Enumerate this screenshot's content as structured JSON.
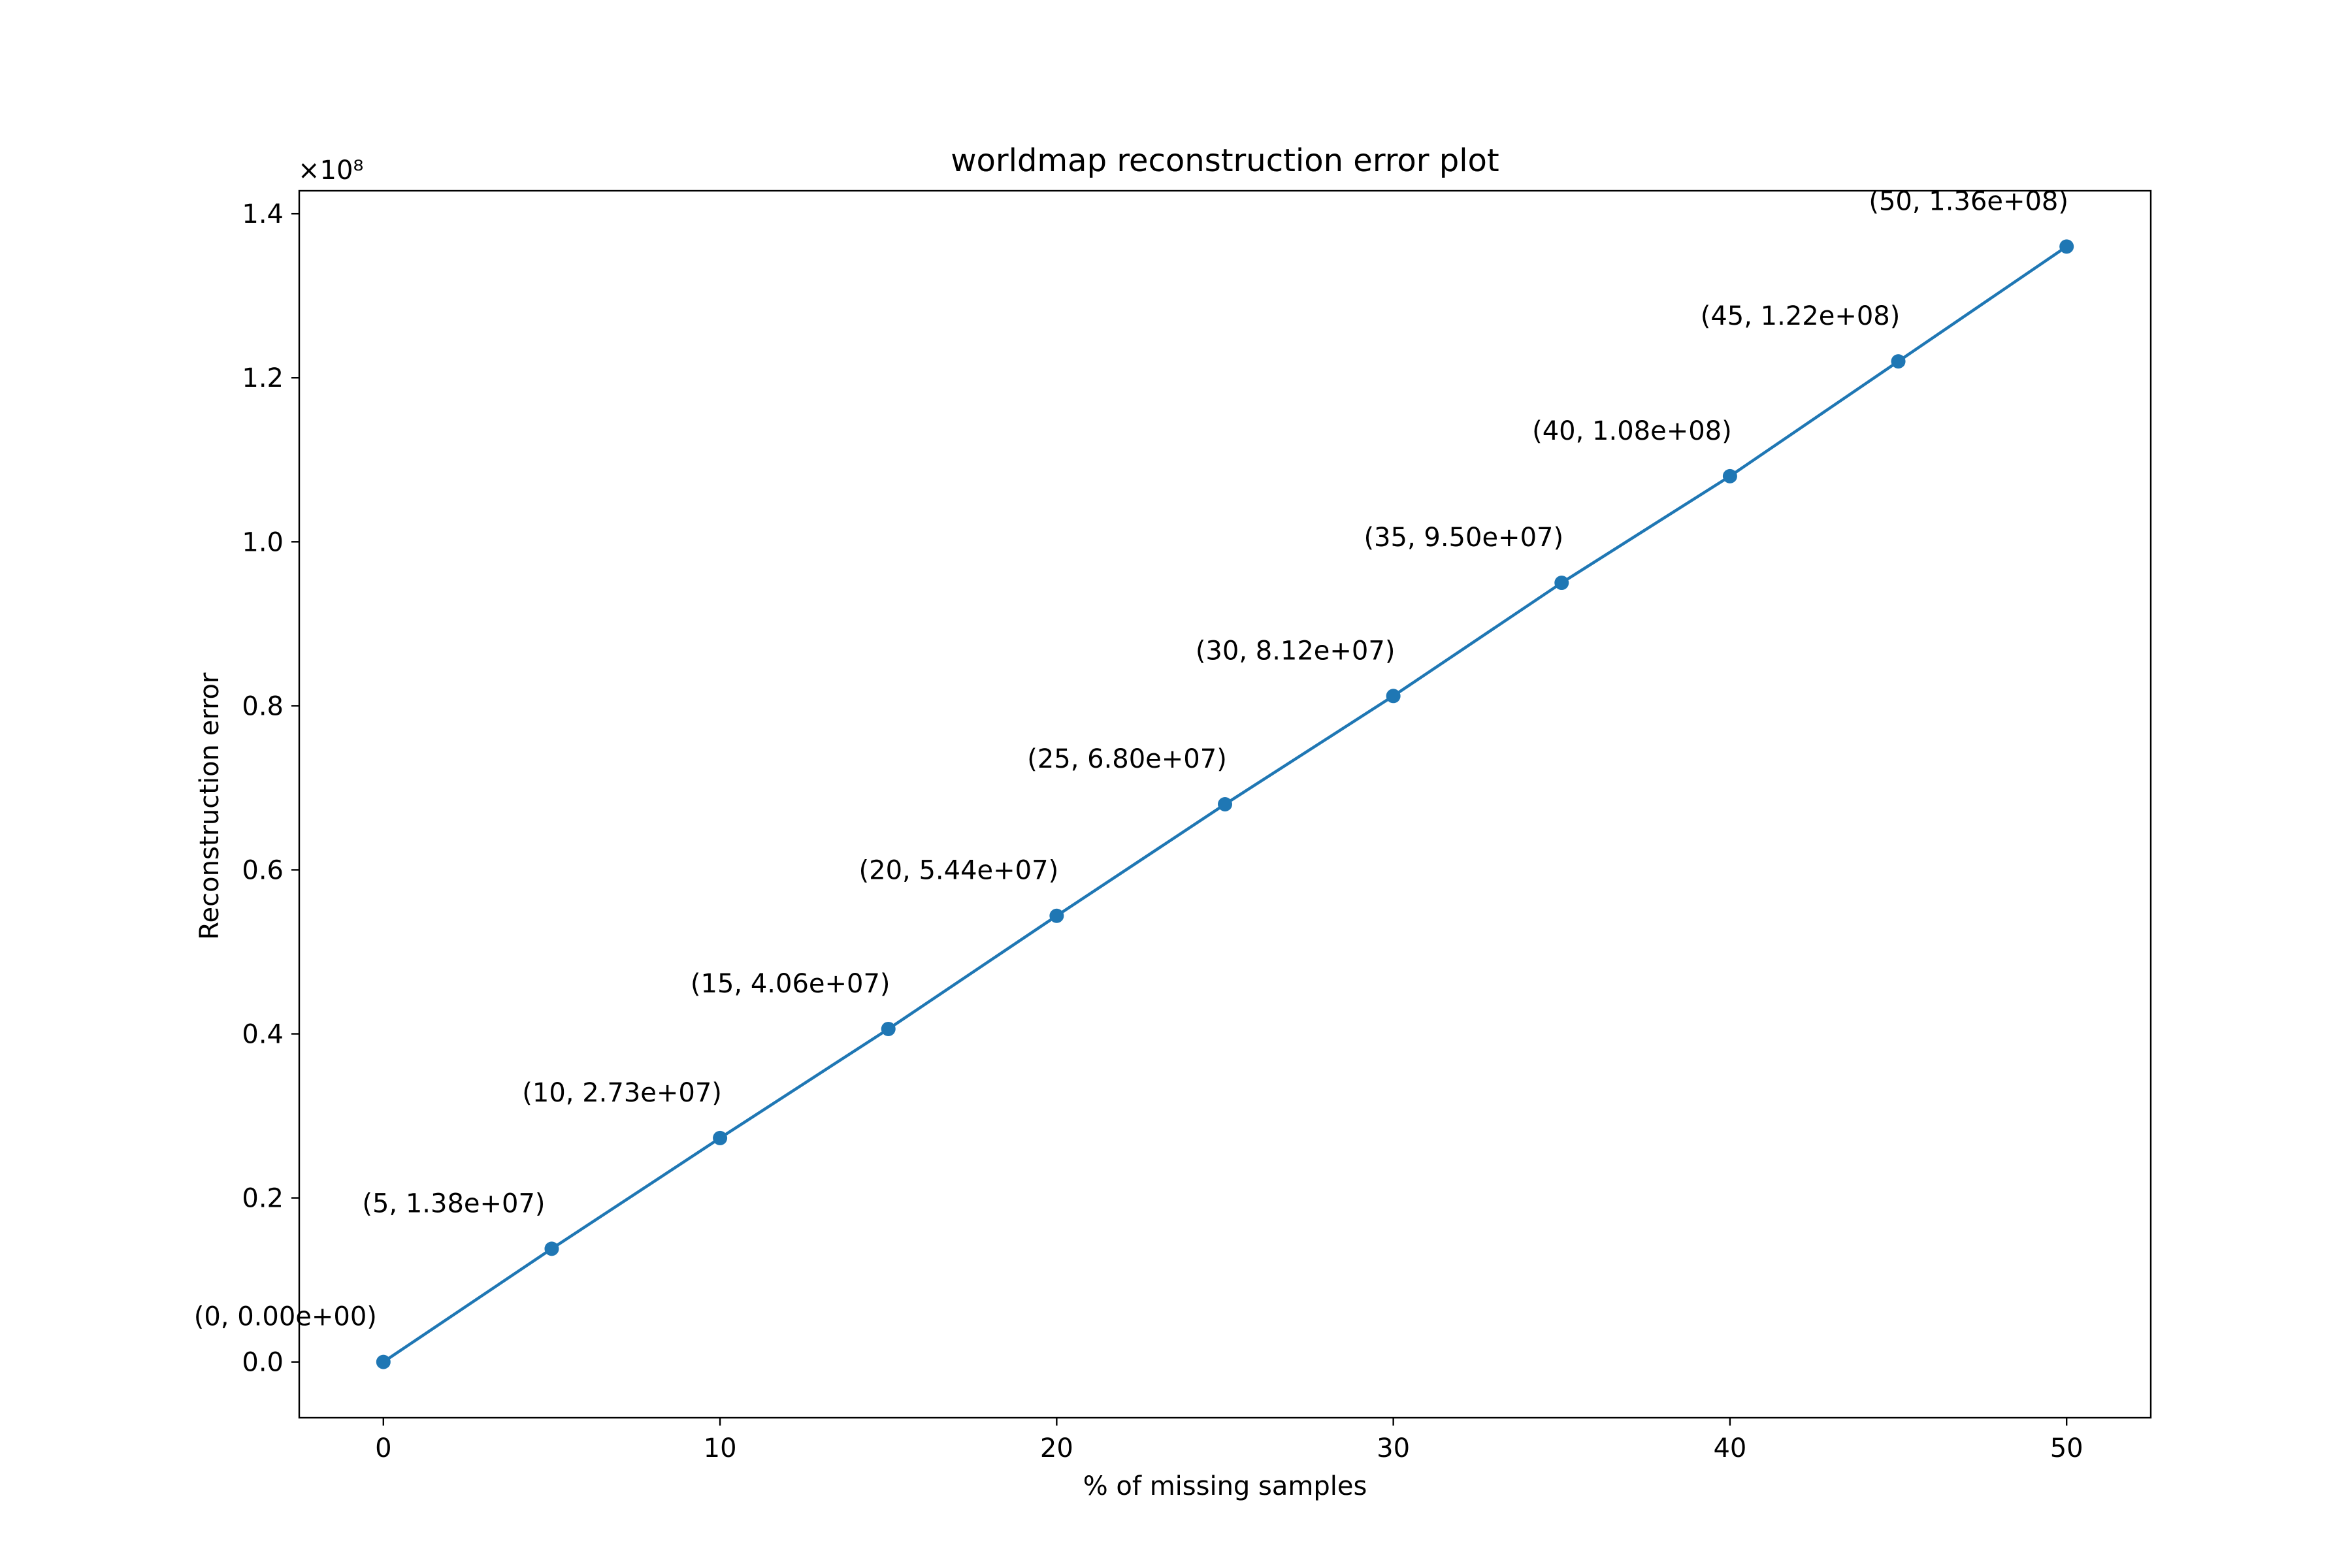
{
  "chart_data": {
    "type": "line",
    "title": "worldmap reconstruction error plot",
    "xlabel": "% of missing samples",
    "ylabel": "Reconstruction error",
    "y_multiplier_label": "×10⁸",
    "y_scale": 100000000,
    "xlim": [
      -2.5,
      52.5
    ],
    "ylim": [
      -6800000,
      142800000
    ],
    "x_ticks": [
      0,
      10,
      20,
      30,
      40,
      50
    ],
    "x_tick_labels": [
      "0",
      "10",
      "20",
      "30",
      "40",
      "50"
    ],
    "y_ticks": [
      0,
      20000000,
      40000000,
      60000000,
      80000000,
      100000000,
      120000000,
      140000000
    ],
    "y_tick_labels": [
      "0.0",
      "0.2",
      "0.4",
      "0.6",
      "0.8",
      "1.0",
      "1.2",
      "1.4"
    ],
    "grid": false,
    "series": [
      {
        "color": "#1f77b4",
        "marker": "circle",
        "x": [
          0,
          5,
          10,
          15,
          20,
          25,
          30,
          35,
          40,
          45,
          50
        ],
        "y": [
          0,
          13800000,
          27300000,
          40600000,
          54400000,
          68000000,
          81200000,
          95000000,
          108000000,
          122000000,
          136000000
        ],
        "labels": [
          "(0, 0.00e+00)",
          "(5, 1.38e+07)",
          "(10, 2.73e+07)",
          "(15, 4.06e+07)",
          "(20, 5.44e+07)",
          "(25, 6.80e+07)",
          "(30, 8.12e+07)",
          "(35, 9.50e+07)",
          "(40, 1.08e+08)",
          "(45, 1.22e+08)",
          "(50, 1.36e+08)"
        ]
      }
    ]
  }
}
